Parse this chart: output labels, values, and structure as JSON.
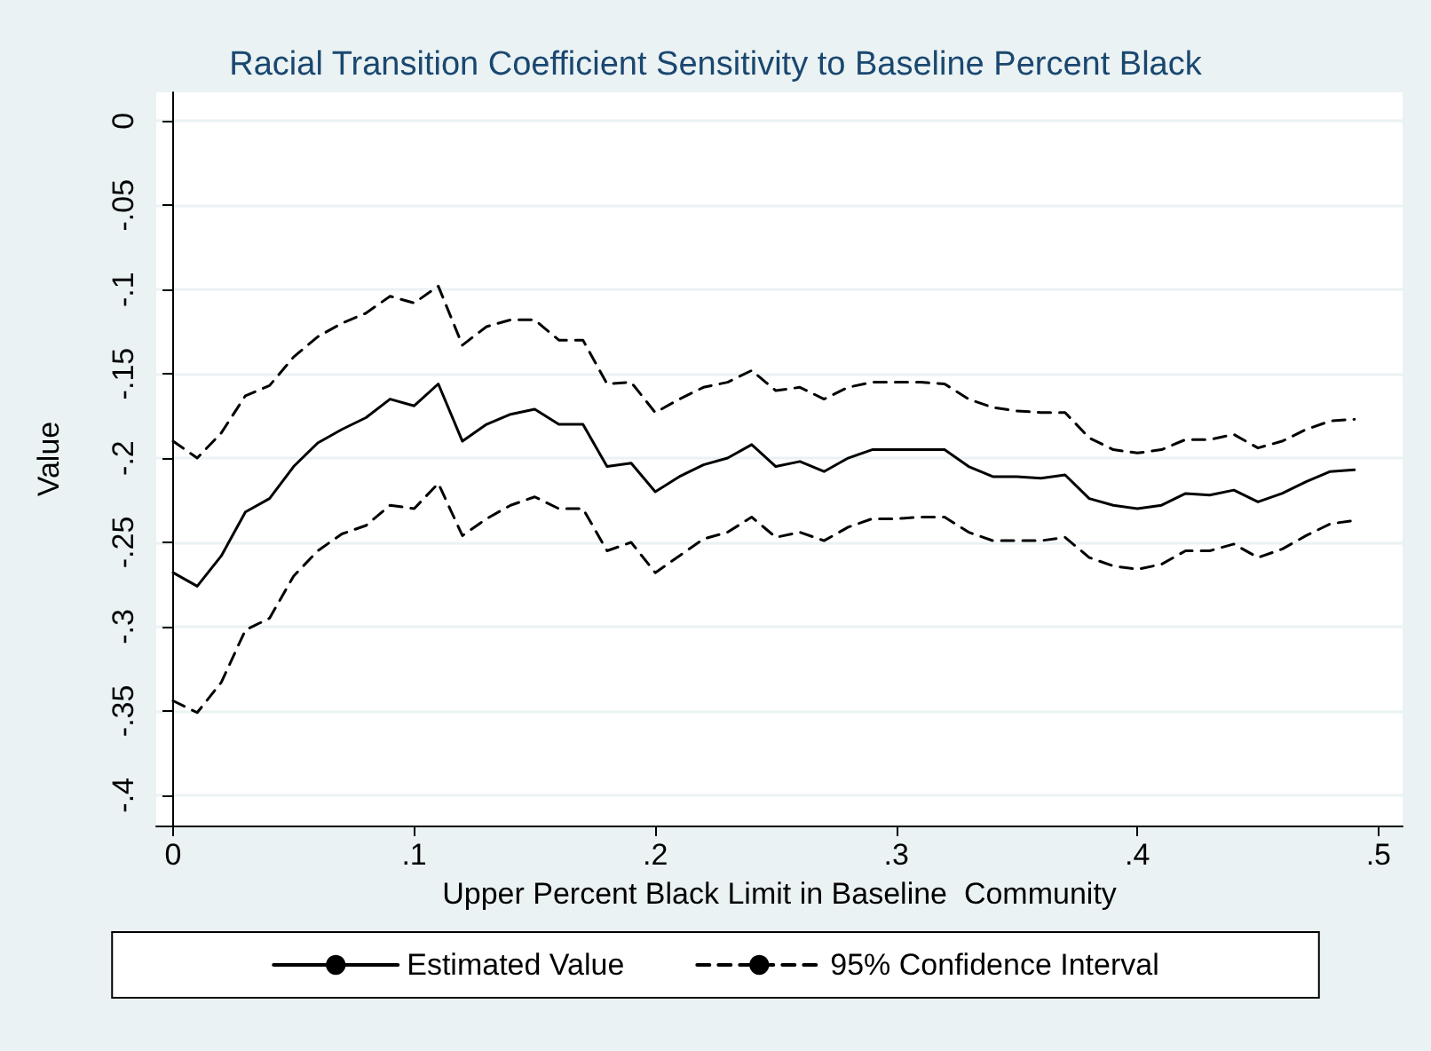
{
  "chart_data": {
    "type": "line",
    "title": "Racial Transition Coefficient Sensitivity to Baseline Percent Black",
    "xlabel": "Upper Percent Black Limit in Baseline  Community",
    "ylabel": "Value",
    "x": [
      0,
      0.01,
      0.02,
      0.03,
      0.04,
      0.05,
      0.06,
      0.07,
      0.08,
      0.09,
      0.1,
      0.11,
      0.12,
      0.13,
      0.14,
      0.15,
      0.16,
      0.17,
      0.18,
      0.19,
      0.2,
      0.21,
      0.22,
      0.23,
      0.24,
      0.25,
      0.26,
      0.27,
      0.28,
      0.29,
      0.3,
      0.31,
      0.32,
      0.33,
      0.34,
      0.35,
      0.36,
      0.37,
      0.38,
      0.39,
      0.4,
      0.41,
      0.42,
      0.43,
      0.44,
      0.45,
      0.46,
      0.47,
      0.48,
      0.49
    ],
    "series": [
      {
        "name": "Estimated Value",
        "color": "#000000",
        "line_style": "solid",
        "values": [
          -0.268,
          -0.276,
          -0.258,
          -0.232,
          -0.224,
          -0.205,
          -0.191,
          -0.183,
          -0.176,
          -0.165,
          -0.169,
          -0.156,
          -0.19,
          -0.18,
          -0.174,
          -0.171,
          -0.18,
          -0.18,
          -0.205,
          -0.203,
          -0.22,
          -0.211,
          -0.204,
          -0.2,
          -0.192,
          -0.205,
          -0.202,
          -0.208,
          -0.2,
          -0.195,
          -0.195,
          -0.195,
          -0.195,
          -0.205,
          -0.211,
          -0.211,
          -0.212,
          -0.21,
          -0.224,
          -0.228,
          -0.23,
          -0.228,
          -0.221,
          -0.222,
          -0.219,
          -0.226,
          -0.221,
          -0.214,
          -0.208,
          -0.207
        ]
      },
      {
        "name": "95% Confidence Interval",
        "color": "#000000",
        "line_style": "dashed",
        "values": [
          -0.19,
          -0.2,
          -0.185,
          -0.163,
          -0.157,
          -0.14,
          -0.128,
          -0.12,
          -0.114,
          -0.104,
          -0.108,
          -0.098,
          -0.133,
          -0.122,
          -0.118,
          -0.118,
          -0.13,
          -0.13,
          -0.156,
          -0.155,
          -0.173,
          -0.165,
          -0.158,
          -0.155,
          -0.148,
          -0.16,
          -0.158,
          -0.165,
          -0.158,
          -0.155,
          -0.155,
          -0.155,
          -0.156,
          -0.165,
          -0.17,
          -0.172,
          -0.173,
          -0.173,
          -0.188,
          -0.195,
          -0.197,
          -0.195,
          -0.189,
          -0.189,
          -0.186,
          -0.194,
          -0.19,
          -0.183,
          -0.178,
          -0.177
        ]
      },
      {
        "color": "#000000",
        "line_style": "dashed",
        "values": [
          -0.344,
          -0.351,
          -0.333,
          -0.302,
          -0.295,
          -0.27,
          -0.255,
          -0.245,
          -0.24,
          -0.228,
          -0.23,
          -0.215,
          -0.246,
          -0.236,
          -0.228,
          -0.223,
          -0.23,
          -0.23,
          -0.255,
          -0.25,
          -0.268,
          -0.258,
          -0.248,
          -0.244,
          -0.235,
          -0.247,
          -0.244,
          -0.249,
          -0.241,
          -0.236,
          -0.236,
          -0.235,
          -0.235,
          -0.244,
          -0.249,
          -0.249,
          -0.249,
          -0.247,
          -0.259,
          -0.264,
          -0.266,
          -0.263,
          -0.255,
          -0.255,
          -0.251,
          -0.259,
          -0.254,
          -0.246,
          -0.239,
          -0.237
        ]
      }
    ],
    "xlim": [
      -0.007,
      0.51
    ],
    "xticks": [
      {
        "value": 0,
        "label": "0"
      },
      {
        "value": 0.1,
        "label": ".1"
      },
      {
        "value": 0.2,
        "label": ".2"
      },
      {
        "value": 0.3,
        "label": ".3"
      },
      {
        "value": 0.4,
        "label": ".4"
      },
      {
        "value": 0.5,
        "label": ".5"
      }
    ],
    "ylim": [
      -0.418,
      0.017
    ],
    "yticks": [
      {
        "value": 0,
        "label": "0"
      },
      {
        "value": -0.05,
        "label": "-.05"
      },
      {
        "value": -0.1,
        "label": "-.1"
      },
      {
        "value": -0.15,
        "label": "-.15"
      },
      {
        "value": -0.2,
        "label": "-.2"
      },
      {
        "value": -0.25,
        "label": "-.25"
      },
      {
        "value": -0.3,
        "label": "-.3"
      },
      {
        "value": -0.35,
        "label": "-.35"
      },
      {
        "value": -0.4,
        "label": "-.4"
      }
    ],
    "grid": "y",
    "legend": "bottom",
    "marker": "none"
  }
}
